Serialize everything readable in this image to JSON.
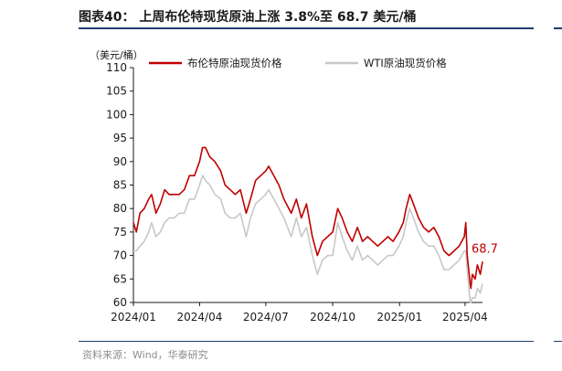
{
  "header": {
    "title": "图表40： 上周布伦特现货原油上涨 3.8%至 68.7 美元/桶"
  },
  "footer": {
    "source": "资料来源：Wind，华泰研究"
  },
  "chart_data": {
    "type": "line",
    "unit_label": "（美元/桶）",
    "ylim": [
      60,
      110
    ],
    "y_ticks": [
      "60",
      "65",
      "70",
      "75",
      "80",
      "85",
      "90",
      "95",
      "100",
      "105",
      "110"
    ],
    "x_range": [
      "2024-01-01",
      "2025-04-25"
    ],
    "x_ticks": [
      {
        "label": "2024/01",
        "date": "2024-01-01"
      },
      {
        "label": "2024/04",
        "date": "2024-04-01"
      },
      {
        "label": "2024/07",
        "date": "2024-07-01"
      },
      {
        "label": "2024/10",
        "date": "2024-10-01"
      },
      {
        "label": "2025/01",
        "date": "2025-01-01"
      },
      {
        "label": "2025/04",
        "date": "2025-04-01"
      }
    ],
    "grid": false,
    "legend_position": "top",
    "annotation": {
      "text": "68.7",
      "series": "布伦特原油现货价格"
    },
    "series": [
      {
        "name": "布伦特原油现货价格",
        "color": "#c00000",
        "points": [
          [
            "2024-01-01",
            77
          ],
          [
            "2024-01-05",
            75
          ],
          [
            "2024-01-10",
            79
          ],
          [
            "2024-01-16",
            80
          ],
          [
            "2024-01-22",
            82
          ],
          [
            "2024-01-26",
            83
          ],
          [
            "2024-02-01",
            79
          ],
          [
            "2024-02-07",
            81
          ],
          [
            "2024-02-13",
            84
          ],
          [
            "2024-02-19",
            83
          ],
          [
            "2024-02-26",
            83
          ],
          [
            "2024-03-04",
            83
          ],
          [
            "2024-03-11",
            84
          ],
          [
            "2024-03-18",
            87
          ],
          [
            "2024-03-25",
            87
          ],
          [
            "2024-04-01",
            90
          ],
          [
            "2024-04-05",
            93
          ],
          [
            "2024-04-09",
            93
          ],
          [
            "2024-04-15",
            91
          ],
          [
            "2024-04-22",
            90
          ],
          [
            "2024-04-30",
            88
          ],
          [
            "2024-05-06",
            85
          ],
          [
            "2024-05-13",
            84
          ],
          [
            "2024-05-20",
            83
          ],
          [
            "2024-05-27",
            84
          ],
          [
            "2024-06-04",
            79
          ],
          [
            "2024-06-10",
            82
          ],
          [
            "2024-06-17",
            86
          ],
          [
            "2024-06-24",
            87
          ],
          [
            "2024-07-01",
            88
          ],
          [
            "2024-07-05",
            89
          ],
          [
            "2024-07-12",
            87
          ],
          [
            "2024-07-19",
            85
          ],
          [
            "2024-07-26",
            82
          ],
          [
            "2024-08-05",
            79
          ],
          [
            "2024-08-12",
            82
          ],
          [
            "2024-08-19",
            78
          ],
          [
            "2024-08-26",
            81
          ],
          [
            "2024-09-03",
            74
          ],
          [
            "2024-09-10",
            70
          ],
          [
            "2024-09-17",
            73
          ],
          [
            "2024-09-24",
            74
          ],
          [
            "2024-10-01",
            75
          ],
          [
            "2024-10-08",
            80
          ],
          [
            "2024-10-14",
            78
          ],
          [
            "2024-10-21",
            75
          ],
          [
            "2024-10-28",
            73
          ],
          [
            "2024-11-04",
            76
          ],
          [
            "2024-11-11",
            73
          ],
          [
            "2024-11-18",
            74
          ],
          [
            "2024-11-25",
            73
          ],
          [
            "2024-12-02",
            72
          ],
          [
            "2024-12-09",
            73
          ],
          [
            "2024-12-16",
            74
          ],
          [
            "2024-12-23",
            73
          ],
          [
            "2024-12-31",
            75
          ],
          [
            "2025-01-06",
            77
          ],
          [
            "2025-01-10",
            80
          ],
          [
            "2025-01-15",
            83
          ],
          [
            "2025-01-20",
            81
          ],
          [
            "2025-01-27",
            78
          ],
          [
            "2025-02-03",
            76
          ],
          [
            "2025-02-10",
            75
          ],
          [
            "2025-02-17",
            76
          ],
          [
            "2025-02-24",
            74
          ],
          [
            "2025-03-03",
            71
          ],
          [
            "2025-03-10",
            70
          ],
          [
            "2025-03-17",
            71
          ],
          [
            "2025-03-24",
            72
          ],
          [
            "2025-03-31",
            74
          ],
          [
            "2025-04-02",
            77
          ],
          [
            "2025-04-04",
            70
          ],
          [
            "2025-04-08",
            64
          ],
          [
            "2025-04-09",
            63
          ],
          [
            "2025-04-11",
            66
          ],
          [
            "2025-04-15",
            65
          ],
          [
            "2025-04-18",
            68
          ],
          [
            "2025-04-22",
            66
          ],
          [
            "2025-04-25",
            68.7
          ]
        ]
      },
      {
        "name": "WTI原油现货价格",
        "color": "#c8c8c8",
        "points": [
          [
            "2024-01-01",
            71
          ],
          [
            "2024-01-05",
            71
          ],
          [
            "2024-01-10",
            72
          ],
          [
            "2024-01-16",
            73
          ],
          [
            "2024-01-22",
            75
          ],
          [
            "2024-01-26",
            77
          ],
          [
            "2024-02-01",
            74
          ],
          [
            "2024-02-07",
            75
          ],
          [
            "2024-02-13",
            77
          ],
          [
            "2024-02-19",
            78
          ],
          [
            "2024-02-26",
            78
          ],
          [
            "2024-03-04",
            79
          ],
          [
            "2024-03-11",
            79
          ],
          [
            "2024-03-18",
            82
          ],
          [
            "2024-03-25",
            82
          ],
          [
            "2024-04-01",
            85
          ],
          [
            "2024-04-05",
            87
          ],
          [
            "2024-04-09",
            86
          ],
          [
            "2024-04-15",
            85
          ],
          [
            "2024-04-22",
            83
          ],
          [
            "2024-04-30",
            82
          ],
          [
            "2024-05-06",
            79
          ],
          [
            "2024-05-13",
            78
          ],
          [
            "2024-05-20",
            78
          ],
          [
            "2024-05-27",
            79
          ],
          [
            "2024-06-04",
            74
          ],
          [
            "2024-06-10",
            78
          ],
          [
            "2024-06-17",
            81
          ],
          [
            "2024-06-24",
            82
          ],
          [
            "2024-07-01",
            83
          ],
          [
            "2024-07-05",
            84
          ],
          [
            "2024-07-12",
            82
          ],
          [
            "2024-07-19",
            80
          ],
          [
            "2024-07-26",
            78
          ],
          [
            "2024-08-05",
            74
          ],
          [
            "2024-08-12",
            78
          ],
          [
            "2024-08-19",
            74
          ],
          [
            "2024-08-26",
            76
          ],
          [
            "2024-09-03",
            70
          ],
          [
            "2024-09-10",
            66
          ],
          [
            "2024-09-17",
            69
          ],
          [
            "2024-09-24",
            70
          ],
          [
            "2024-10-01",
            70
          ],
          [
            "2024-10-08",
            77
          ],
          [
            "2024-10-14",
            74
          ],
          [
            "2024-10-21",
            71
          ],
          [
            "2024-10-28",
            69
          ],
          [
            "2024-11-04",
            72
          ],
          [
            "2024-11-11",
            69
          ],
          [
            "2024-11-18",
            70
          ],
          [
            "2024-11-25",
            69
          ],
          [
            "2024-12-02",
            68
          ],
          [
            "2024-12-09",
            69
          ],
          [
            "2024-12-16",
            70
          ],
          [
            "2024-12-23",
            70
          ],
          [
            "2024-12-31",
            72
          ],
          [
            "2025-01-06",
            74
          ],
          [
            "2025-01-10",
            77
          ],
          [
            "2025-01-15",
            80
          ],
          [
            "2025-01-20",
            78
          ],
          [
            "2025-01-27",
            75
          ],
          [
            "2025-02-03",
            73
          ],
          [
            "2025-02-10",
            72
          ],
          [
            "2025-02-17",
            72
          ],
          [
            "2025-02-24",
            70
          ],
          [
            "2025-03-03",
            67
          ],
          [
            "2025-03-10",
            67
          ],
          [
            "2025-03-17",
            68
          ],
          [
            "2025-03-24",
            69
          ],
          [
            "2025-03-31",
            71
          ],
          [
            "2025-04-02",
            71
          ],
          [
            "2025-04-04",
            67
          ],
          [
            "2025-04-08",
            60
          ],
          [
            "2025-04-09",
            60
          ],
          [
            "2025-04-11",
            61
          ],
          [
            "2025-04-15",
            61
          ],
          [
            "2025-04-18",
            63
          ],
          [
            "2025-04-22",
            62
          ],
          [
            "2025-04-25",
            64
          ]
        ]
      }
    ]
  }
}
